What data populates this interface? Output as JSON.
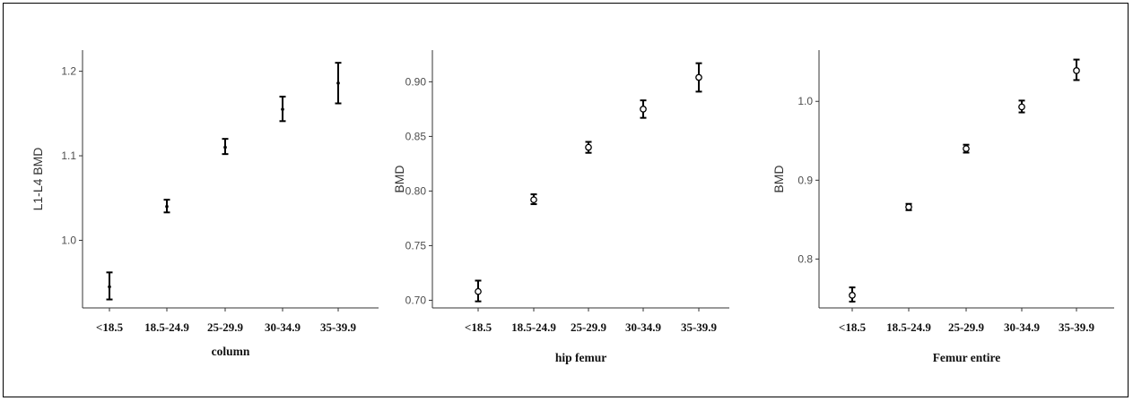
{
  "chart_data": [
    {
      "type": "scatter",
      "xlabel": "column",
      "ylabel": "L1-L4 BMD",
      "categories": [
        "<18.5",
        "18.5-24.9",
        "25-29.9",
        "30-34.9",
        "35-39.9"
      ],
      "ylim": [
        0.92,
        1.225
      ],
      "yticks": [
        1.0,
        1.1,
        1.2
      ],
      "yticklabels": [
        "1.0",
        "1.1",
        "1.2"
      ],
      "marker": "dot",
      "points": [
        {
          "mean": 0.945,
          "lower": 0.93,
          "upper": 0.962
        },
        {
          "mean": 1.04,
          "lower": 1.033,
          "upper": 1.048
        },
        {
          "mean": 1.11,
          "lower": 1.102,
          "upper": 1.12
        },
        {
          "mean": 1.155,
          "lower": 1.141,
          "upper": 1.17
        },
        {
          "mean": 1.186,
          "lower": 1.162,
          "upper": 1.21
        }
      ]
    },
    {
      "type": "scatter",
      "xlabel": "hip femur",
      "ylabel": "BMD",
      "categories": [
        "<18.5",
        "18.5-24.9",
        "25-29.9",
        "30-34.9",
        "35-39.9"
      ],
      "ylim": [
        0.693,
        0.929
      ],
      "yticks": [
        0.7,
        0.75,
        0.8,
        0.85,
        0.9
      ],
      "yticklabels": [
        "0.70",
        "0.75",
        "0.80",
        "0.85",
        "0.90"
      ],
      "marker": "circle",
      "points": [
        {
          "mean": 0.708,
          "lower": 0.699,
          "upper": 0.718
        },
        {
          "mean": 0.792,
          "lower": 0.788,
          "upper": 0.797
        },
        {
          "mean": 0.84,
          "lower": 0.835,
          "upper": 0.845
        },
        {
          "mean": 0.875,
          "lower": 0.867,
          "upper": 0.883
        },
        {
          "mean": 0.904,
          "lower": 0.891,
          "upper": 0.917
        }
      ]
    },
    {
      "type": "scatter",
      "xlabel": "Femur entire",
      "ylabel": "BMD",
      "categories": [
        "<18.5",
        "18.5-24.9",
        "25-29.9",
        "30-34.9",
        "35-39.9"
      ],
      "ylim": [
        0.738,
        1.065
      ],
      "yticks": [
        0.8,
        0.9,
        1.0
      ],
      "yticklabels": [
        "0.8",
        "0.9",
        "1.0"
      ],
      "marker": "circle",
      "points": [
        {
          "mean": 0.754,
          "lower": 0.746,
          "upper": 0.764
        },
        {
          "mean": 0.866,
          "lower": 0.862,
          "upper": 0.87
        },
        {
          "mean": 0.94,
          "lower": 0.935,
          "upper": 0.945
        },
        {
          "mean": 0.993,
          "lower": 0.986,
          "upper": 1.001
        },
        {
          "mean": 1.039,
          "lower": 1.027,
          "upper": 1.053
        }
      ]
    }
  ]
}
